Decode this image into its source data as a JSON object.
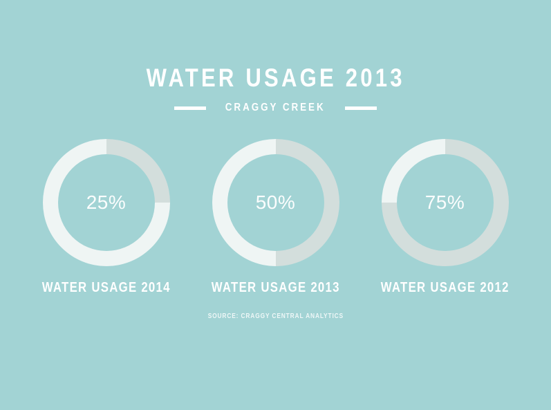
{
  "page": {
    "background_color": "#a2d3d4"
  },
  "header": {
    "title": "WATER USAGE 2013",
    "subtitle": "CRAGGY CREEK"
  },
  "footer": {
    "source": "SOURCE: CRAGGY CENTRAL ANALYTICS"
  },
  "chart_data": {
    "type": "pie",
    "variant": "donut",
    "title": "WATER USAGE 2013",
    "subtitle": "CRAGGY CREEK",
    "source": "SOURCE: CRAGGY CENTRAL ANALYTICS",
    "legend_position": "none",
    "start_angle_deg": 0,
    "direction": "clockwise",
    "charts": [
      {
        "label": "WATER USAGE 2014",
        "value": 25,
        "display": "25%",
        "slices": [
          {
            "name": "usage",
            "pct": 25
          },
          {
            "name": "remainder",
            "pct": 75
          }
        ]
      },
      {
        "label": "WATER USAGE 2013",
        "value": 50,
        "display": "50%",
        "slices": [
          {
            "name": "usage",
            "pct": 50
          },
          {
            "name": "remainder",
            "pct": 50
          }
        ]
      },
      {
        "label": "WATER USAGE 2012",
        "value": 75,
        "display": "75%",
        "slices": [
          {
            "name": "usage",
            "pct": 75
          },
          {
            "name": "remainder",
            "pct": 25
          }
        ]
      }
    ],
    "colors": {
      "background": "#a2d3d4",
      "slice_usage": "#d3dedc",
      "slice_remainder": "#eff5f4",
      "title_text": "#ffffff",
      "value_text": "#fbfdfd",
      "source_text": "#e4f2f1"
    }
  }
}
